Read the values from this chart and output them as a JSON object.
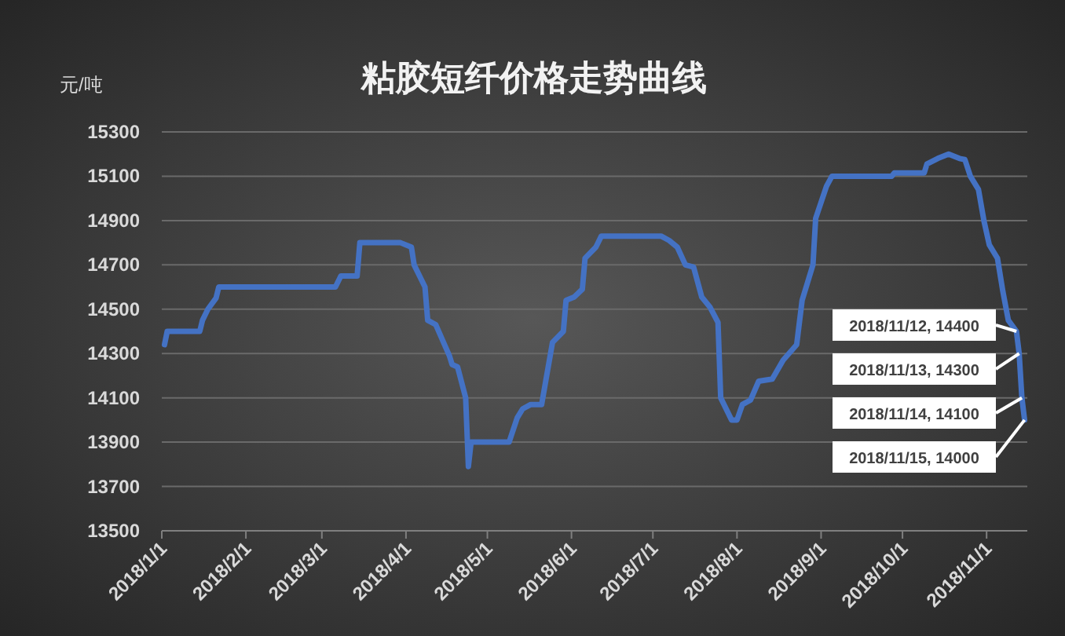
{
  "chart_data": {
    "type": "line",
    "title": "粘胶短纤价格走势曲线",
    "ylabel": "元/吨",
    "x": [
      "2018-01-02",
      "2018-01-03",
      "2018-01-15",
      "2018-01-16",
      "2018-01-18",
      "2018-01-21",
      "2018-01-22",
      "2018-03-06",
      "2018-03-08",
      "2018-03-14",
      "2018-03-15",
      "2018-03-30",
      "2018-04-03",
      "2018-04-04",
      "2018-04-08",
      "2018-04-09",
      "2018-04-12",
      "2018-04-17",
      "2018-04-18",
      "2018-04-20",
      "2018-04-23",
      "2018-04-24",
      "2018-04-25",
      "2018-05-09",
      "2018-05-12",
      "2018-05-14",
      "2018-05-17",
      "2018-05-21",
      "2018-05-25",
      "2018-05-29",
      "2018-05-30",
      "2018-06-02",
      "2018-06-05",
      "2018-06-06",
      "2018-06-10",
      "2018-06-12",
      "2018-07-04",
      "2018-07-07",
      "2018-07-10",
      "2018-07-13",
      "2018-07-16",
      "2018-07-19",
      "2018-07-22",
      "2018-07-25",
      "2018-07-26",
      "2018-07-30",
      "2018-08-01",
      "2018-08-03",
      "2018-08-06",
      "2018-08-09",
      "2018-08-14",
      "2018-08-18",
      "2018-08-23",
      "2018-08-25",
      "2018-08-29",
      "2018-08-30",
      "2018-09-03",
      "2018-09-05",
      "2018-09-27",
      "2018-09-28",
      "2018-10-09",
      "2018-10-10",
      "2018-10-14",
      "2018-10-18",
      "2018-10-22",
      "2018-10-24",
      "2018-10-26",
      "2018-10-29",
      "2018-10-31",
      "2018-11-02",
      "2018-11-05",
      "2018-11-07",
      "2018-11-09",
      "2018-11-12",
      "2018-11-13",
      "2018-11-14",
      "2018-11-15"
    ],
    "series": [
      {
        "color": "#4472c4",
        "values": [
          14340,
          14400,
          14400,
          14450,
          14500,
          14550,
          14600,
          14600,
          14650,
          14650,
          14800,
          14800,
          14780,
          14700,
          14600,
          14450,
          14430,
          14290,
          14250,
          14240,
          14100,
          13790,
          13900,
          13900,
          14010,
          14050,
          14070,
          14070,
          14350,
          14400,
          14540,
          14555,
          14590,
          14730,
          14780,
          14830,
          14830,
          14810,
          14780,
          14700,
          14690,
          14555,
          14510,
          14440,
          14100,
          14000,
          14000,
          14070,
          14090,
          14175,
          14185,
          14270,
          14340,
          14540,
          14700,
          14910,
          15055,
          15100,
          15100,
          15115,
          15115,
          15155,
          15180,
          15200,
          15180,
          15175,
          15100,
          15040,
          14900,
          14790,
          14730,
          14580,
          14450,
          14400,
          14300,
          14100,
          14000
        ]
      }
    ],
    "xlim": [
      "2018-01-01",
      "2018-11-16"
    ],
    "xticks": [
      {
        "value": "2018-01-01",
        "label": "2018/1/1"
      },
      {
        "value": "2018-02-01",
        "label": "2018/2/1"
      },
      {
        "value": "2018-03-01",
        "label": "2018/3/1"
      },
      {
        "value": "2018-04-01",
        "label": "2018/4/1"
      },
      {
        "value": "2018-05-01",
        "label": "2018/5/1"
      },
      {
        "value": "2018-06-01",
        "label": "2018/6/1"
      },
      {
        "value": "2018-07-01",
        "label": "2018/7/1"
      },
      {
        "value": "2018-08-01",
        "label": "2018/8/1"
      },
      {
        "value": "2018-09-01",
        "label": "2018/9/1"
      },
      {
        "value": "2018-10-01",
        "label": "2018/10/1"
      },
      {
        "value": "2018-11-01",
        "label": "2018/11/1"
      }
    ],
    "ylim": [
      13500,
      15300
    ],
    "yticks": [
      13500,
      13700,
      13900,
      14100,
      14300,
      14500,
      14700,
      14900,
      15100,
      15300
    ],
    "grid": "y",
    "marker": "none",
    "line_style": "solid",
    "annotations": [
      {
        "text": "2018/11/12, 14400",
        "x": "2018-11-12",
        "y": 14400
      },
      {
        "text": "2018/11/13, 14300",
        "x": "2018-11-13",
        "y": 14300
      },
      {
        "text": "2018/11/14, 14100",
        "x": "2018-11-14",
        "y": 14100
      },
      {
        "text": "2018/11/15, 14000",
        "x": "2018-11-15",
        "y": 14000
      }
    ]
  }
}
